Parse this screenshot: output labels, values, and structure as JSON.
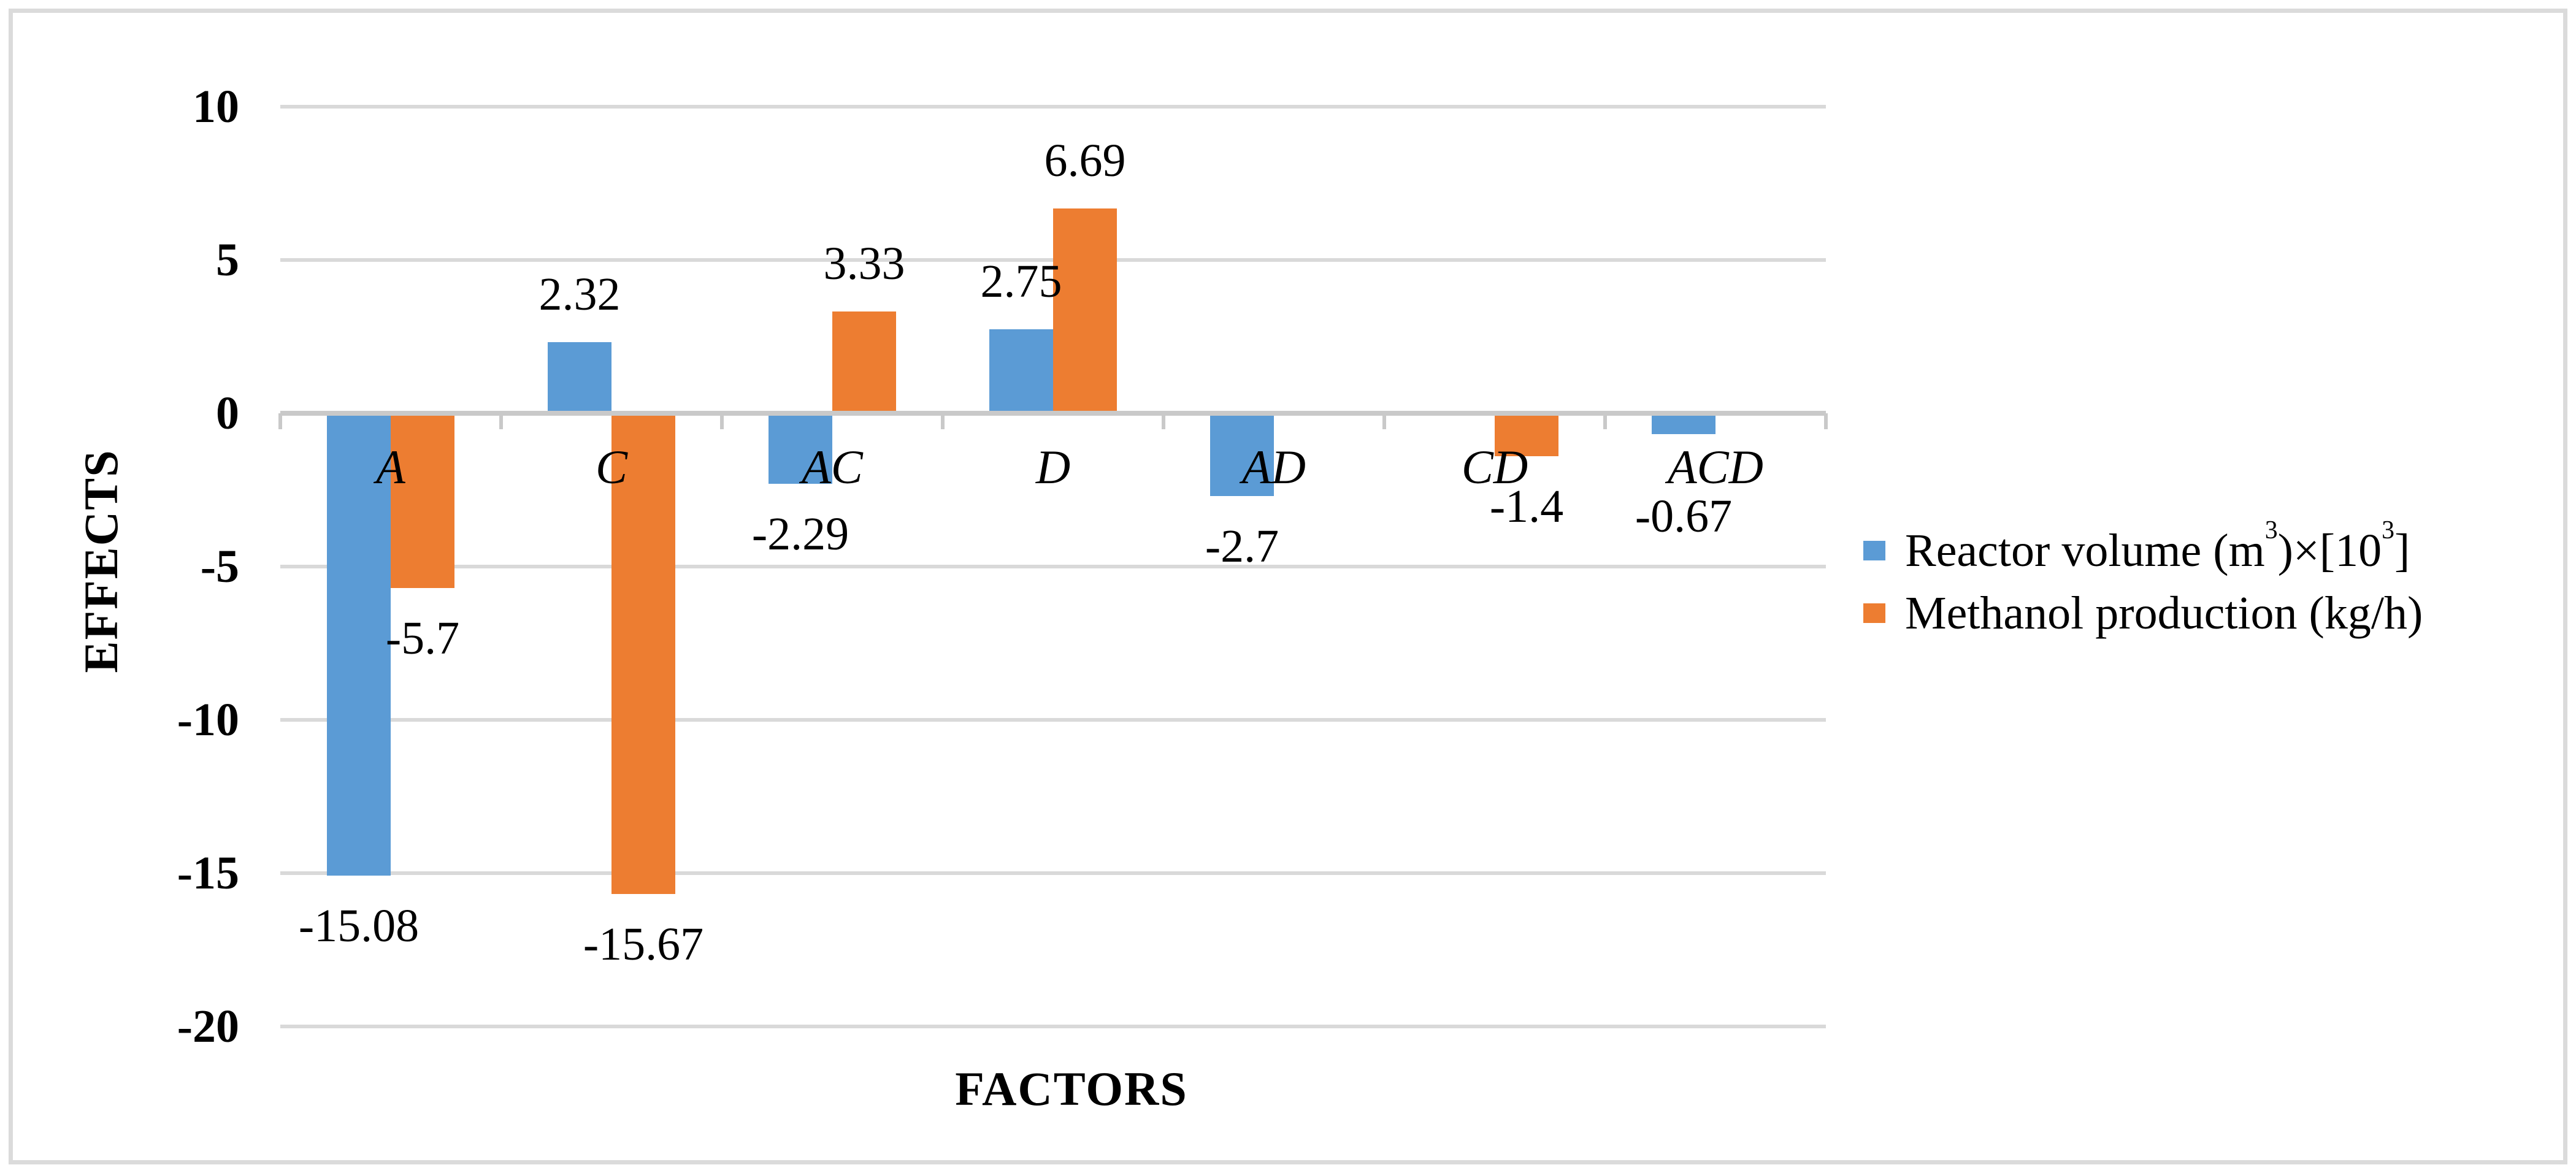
{
  "figure": {
    "background": "#FFFFFF",
    "border_color": "#DBDBDB"
  },
  "chart_data": {
    "type": "bar",
    "title": "",
    "categories": [
      "A",
      "C",
      "AC",
      "D",
      "AD",
      "CD",
      "ACD"
    ],
    "series": [
      {
        "name": "Reactor volume (m³)×[10³]",
        "color": "#5B9BD5",
        "values": [
          -15.08,
          2.32,
          -2.29,
          2.75,
          -2.7,
          null,
          -0.67
        ],
        "value_labels": [
          "-15.08",
          "2.32",
          "-2.29",
          "2.75",
          "-2.7",
          null,
          "-0.67"
        ],
        "legend_parts": [
          {
            "text": "Reactor volume (m",
            "sup": false
          },
          {
            "text": "3",
            "sup": true
          },
          {
            "text": ")×[10",
            "sup": false
          },
          {
            "text": "3",
            "sup": true
          },
          {
            "text": "]",
            "sup": false
          }
        ]
      },
      {
        "name": "Methanol production (kg/h)",
        "color": "#ED7D31",
        "values": [
          -5.7,
          -15.67,
          3.33,
          6.69,
          null,
          -1.4,
          null
        ],
        "value_labels": [
          "-5.7",
          "-15.67",
          "3.33",
          "6.69",
          null,
          "-1.4",
          null
        ],
        "legend_parts": [
          {
            "text": "Methanol production (kg/h)",
            "sup": false
          }
        ]
      }
    ],
    "xlabel": "FACTORS",
    "ylabel": "EFFECTS",
    "ylim": [
      -20,
      10
    ],
    "y_ticks": [
      10,
      5,
      0,
      -5,
      -10,
      -15,
      -20
    ],
    "grid": true,
    "gridline_color": "#D9D9D9",
    "axis_line_color": "#C9C9C9",
    "value_label_position": "outside-end",
    "legend_position": "right",
    "text_color": "#000000"
  }
}
